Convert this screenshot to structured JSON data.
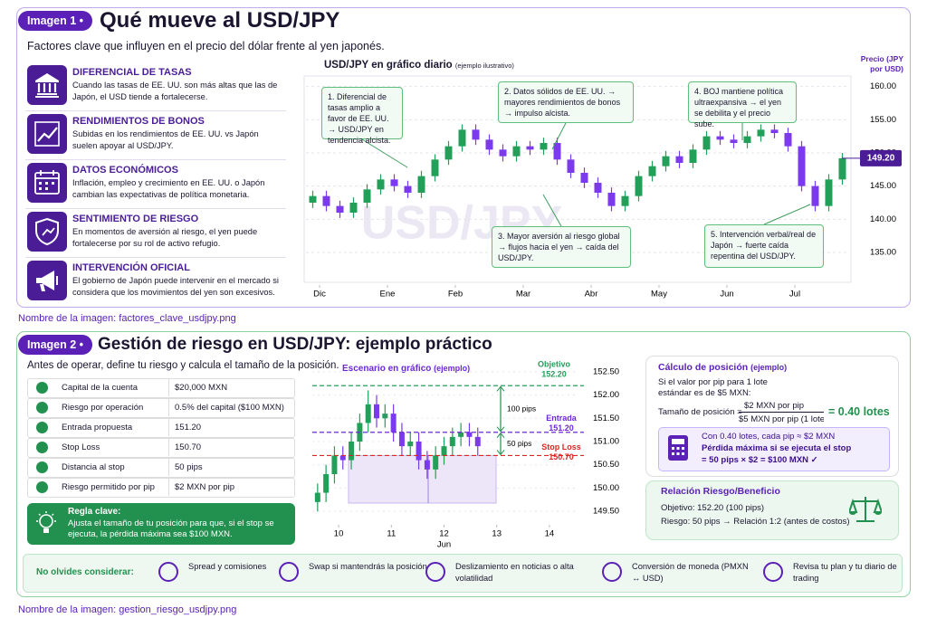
{
  "image1": {
    "tag": "Imagen 1 •",
    "title": "Qué mueve al USD/JPY",
    "subtitle": "Factores clave que influyen en el precio del dólar frente al yen japonés.",
    "factors": [
      {
        "title": "DIFERENCIAL DE TASAS",
        "text": "Cuando las tasas de EE. UU. son más altas que las de Japón, el USD tiende a fortalecerse."
      },
      {
        "title": "RENDIMIENTOS DE BONOS",
        "text": "Subidas en los rendimientos de EE. UU. vs Japón suelen apoyar al USD/JPY."
      },
      {
        "title": "DATOS ECONÓMICOS",
        "text": "Inflación, empleo y crecimiento en EE. UU. o Japón cambian las expectativas de política monetaria."
      },
      {
        "title": "SENTIMIENTO DE RIESGO",
        "text": "En momentos de aversión al riesgo, el yen puede fortalecerse por su rol de activo refugio."
      },
      {
        "title": "INTERVENCIÓN OFICIAL",
        "text": "El gobierno de Japón puede intervenir en el mercado si considera que los movimientos del yen son excesivos."
      }
    ],
    "caption": "Nombre de la imagen: factores_clave_usdjpy.png"
  },
  "chart_data": [
    {
      "type": "candlestick",
      "title": "USD/JPY en gráfico diario",
      "note": "(ejemplo ilustrativo)",
      "y_label": "Precio (JPY por USD)",
      "watermark": "USD/JPY",
      "xlim": [
        -0.5,
        39.5
      ],
      "xticks": [
        {
          "value": 0.5,
          "label": "Dic"
        },
        {
          "value": 5.5,
          "label": "Ene"
        },
        {
          "value": 10.5,
          "label": "Feb"
        },
        {
          "value": 15.5,
          "label": "Mar"
        },
        {
          "value": 20.5,
          "label": "Abr"
        },
        {
          "value": 25.5,
          "label": "May"
        },
        {
          "value": 30.5,
          "label": "Jun"
        },
        {
          "value": 35.5,
          "label": "Jul"
        }
      ],
      "ylim": [
        132,
        162
      ],
      "yticks": [
        {
          "value": 160,
          "label": "160.00"
        },
        {
          "value": 155,
          "label": "155.00"
        },
        {
          "value": 150,
          "label": "150.00"
        },
        {
          "value": 145,
          "label": "145.00"
        },
        {
          "value": 140,
          "label": "140.00"
        },
        {
          "value": 135,
          "label": "135.00"
        }
      ],
      "grid": true,
      "up_color": "#22a05a",
      "down_color": "#7c3aed",
      "open": [
        142.5,
        143.5,
        142.0,
        141.0,
        142.5,
        144.5,
        146.0,
        145.0,
        144.0,
        146.5,
        149.0,
        151.0,
        153.5,
        152.0,
        150.5,
        149.5,
        151.0,
        150.5,
        151.5,
        149.0,
        147.0,
        145.5,
        144.0,
        142.0,
        143.5,
        146.5,
        148.0,
        149.5,
        148.5,
        150.5,
        152.5,
        152.0,
        151.5,
        152.5,
        153.5,
        153.0,
        151.0,
        145.0,
        142.0,
        146.0
      ],
      "high": [
        144.3,
        144.3,
        142.8,
        143.3,
        145.3,
        146.8,
        146.8,
        145.8,
        147.3,
        149.8,
        151.8,
        154.3,
        154.3,
        152.8,
        151.3,
        151.8,
        151.8,
        152.3,
        152.3,
        149.8,
        147.8,
        146.3,
        144.8,
        144.3,
        147.3,
        148.8,
        150.3,
        150.3,
        151.3,
        153.3,
        153.3,
        152.8,
        153.3,
        154.3,
        154.3,
        153.8,
        151.8,
        145.8,
        146.8,
        150.0
      ],
      "low": [
        141.7,
        141.2,
        140.2,
        140.2,
        141.7,
        143.7,
        144.2,
        143.2,
        143.2,
        145.7,
        148.2,
        150.2,
        151.2,
        149.7,
        148.7,
        148.7,
        149.7,
        149.7,
        148.2,
        146.2,
        144.7,
        143.2,
        141.2,
        141.2,
        142.7,
        145.7,
        147.2,
        147.7,
        147.7,
        149.7,
        151.2,
        150.7,
        150.7,
        151.7,
        152.2,
        150.2,
        144.2,
        141.2,
        141.2,
        145.2
      ],
      "close": [
        143.5,
        142.0,
        141.0,
        142.5,
        144.5,
        146.0,
        145.0,
        144.0,
        146.5,
        149.0,
        151.0,
        153.5,
        152.0,
        150.5,
        149.5,
        151.0,
        150.5,
        151.5,
        149.0,
        147.0,
        145.5,
        144.0,
        142.0,
        143.5,
        146.5,
        148.0,
        149.5,
        148.5,
        150.5,
        152.5,
        152.0,
        151.5,
        152.5,
        153.5,
        153.0,
        151.0,
        145.0,
        142.0,
        146.0,
        149.2
      ],
      "last_price": {
        "value": 149.2,
        "label": "149.20"
      },
      "annotations": [
        "1. Diferencial de tasas amplio a favor de EE. UU. → USD/JPY en tendencia alcista.",
        "2. Datos sólidos de EE. UU. → mayores rendimientos de bonos → impulso alcista.",
        "3. Mayor aversión al riesgo global → flujos hacia el yen → caída del USD/JPY.",
        "4. BOJ mantiene política ultraexpansiva → el yen se debilita y el precio sube.",
        "5. Intervención verbal/real de Japón → fuerte caída repentina del USD/JPY."
      ]
    },
    {
      "type": "candlestick",
      "title": "Escenario en gráfico",
      "note": "(ejemplo)",
      "x_label": "Jun",
      "xlim": [
        9.5,
        14.5
      ],
      "xticks": [
        10,
        11,
        12,
        13,
        14
      ],
      "ylim": [
        149.25,
        152.75
      ],
      "yticks": [
        {
          "value": 152.5,
          "label": "152.50"
        },
        {
          "value": 152,
          "label": "152.00"
        },
        {
          "value": 151.5,
          "label": "151.50"
        },
        {
          "value": 151,
          "label": "151.00"
        },
        {
          "value": 150.5,
          "label": "150.50"
        },
        {
          "value": 150,
          "label": "150.00"
        },
        {
          "value": 149.5,
          "label": "149.50"
        }
      ],
      "up_color": "#22a05a",
      "down_color": "#7c3aed",
      "x": [
        9.6,
        9.76,
        9.92,
        10.08,
        10.24,
        10.4,
        10.56,
        10.72,
        10.88,
        11.04,
        11.2,
        11.36,
        11.52,
        11.68,
        11.84,
        12.0,
        12.16,
        12.32,
        12.48,
        12.64
      ],
      "open": [
        149.7,
        149.9,
        150.3,
        150.7,
        150.6,
        151.0,
        151.4,
        151.8,
        151.5,
        151.6,
        151.2,
        150.9,
        151.0,
        150.6,
        150.4,
        150.7,
        150.9,
        151.1,
        151.2,
        151.1
      ],
      "high": [
        150.1,
        150.5,
        150.9,
        150.9,
        151.2,
        151.6,
        152.1,
        152.0,
        151.8,
        151.8,
        151.4,
        151.2,
        151.2,
        150.8,
        150.9,
        151.1,
        151.3,
        151.4,
        151.4,
        151.3
      ],
      "low": [
        149.5,
        149.7,
        150.1,
        150.4,
        150.4,
        150.8,
        151.2,
        151.3,
        151.3,
        151.0,
        150.7,
        150.7,
        150.4,
        150.2,
        150.2,
        150.5,
        150.7,
        150.9,
        150.9,
        150.7
      ],
      "close": [
        149.9,
        150.3,
        150.7,
        150.6,
        151.0,
        151.4,
        151.8,
        151.5,
        151.6,
        151.2,
        150.9,
        151.0,
        150.6,
        150.4,
        150.7,
        150.9,
        151.1,
        151.2,
        151.1,
        150.9
      ],
      "levels": [
        {
          "name": "Objetivo",
          "value": 152.2,
          "label": "152.20",
          "color": "#22a05a"
        },
        {
          "name": "Entrada",
          "value": 151.2,
          "label": "151.20",
          "color": "#6d28d9"
        },
        {
          "name": "Stop Loss",
          "value": 150.7,
          "label": "150.70",
          "color": "#dc2626"
        }
      ],
      "distances": [
        "100 pips",
        "50 pips"
      ]
    }
  ],
  "image2": {
    "tag": "Imagen 2 •",
    "title": "Gestión de riesgo en USD/JPY: ejemplo práctico",
    "subtitle": "Antes de operar, define tu riesgo y calcula el tamaño de la posición.",
    "table": [
      [
        "Capital de la cuenta",
        "$20,000 MXN"
      ],
      [
        "Riesgo por operación",
        "0.5% del capital ($100 MXN)"
      ],
      [
        "Entrada propuesta",
        "151.20"
      ],
      [
        "Stop Loss",
        "150.70"
      ],
      [
        "Distancia al stop",
        "50 pips"
      ],
      [
        "Riesgo permitido por pip",
        "$2 MXN por pip"
      ]
    ],
    "rule": {
      "title": "Regla clave:",
      "text": "Ajusta el tamaño de tu posición para que, si el stop se ejecuta, la pérdida máxima sea $100 MXN."
    },
    "calc": {
      "title": "Cálculo de posición",
      "note": "(ejemplo)",
      "intro": "Si el valor por pip para 1 lote estándar es de $5 MXN:",
      "formula": "Tamaño de posición =",
      "numerator": "$2 MXN por pip",
      "denominator": "$5 MXN por pip (1 lote",
      "result": "= 0.40 lotes",
      "box": [
        "Con 0.40 lotes, cada pip ≈ $2 MXN",
        "Pérdida máxima si se ejecuta el stop",
        "= 50 pips × $2 = $100 MXN ✓"
      ]
    },
    "rr": {
      "title": "Relación Riesgo/Beneficio",
      "lines": [
        "Objetivo: 152.20 (100 pips)",
        "Riesgo: 50 pips → Relación 1:2 (antes de costos)"
      ]
    },
    "reminder": {
      "title": "No olvides considerar:",
      "items": [
        "Spread y comisiones",
        "Swap si mantendrás la posición",
        "Deslizamiento en noticias o alta volatilidad",
        "Conversión de moneda (PMXN ↔ USD)",
        "Revisa tu plan y tu diario de trading"
      ]
    },
    "caption": "Nombre de la imagen: gestion_riesgo_usdjpy.png"
  }
}
